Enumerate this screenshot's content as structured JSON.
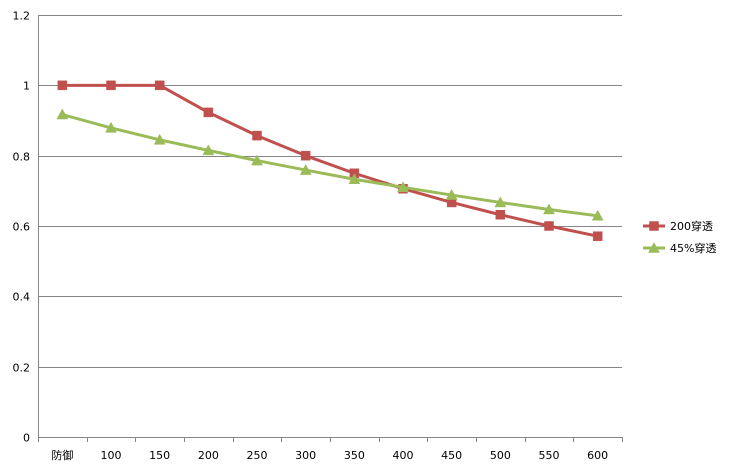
{
  "chart_data": {
    "type": "line",
    "categories": [
      "防御",
      "100",
      "150",
      "200",
      "250",
      "300",
      "350",
      "400",
      "450",
      "500",
      "550",
      "600"
    ],
    "ylim": [
      0,
      1.2
    ],
    "yticks": [
      "0",
      "0.2",
      "0.4",
      "0.6",
      "0.8",
      "1",
      "1.2"
    ],
    "grid": true,
    "legend": "right",
    "series": [
      {
        "name": "200穿透",
        "color": "#c0504d",
        "marker": "square",
        "values": [
          1,
          1,
          1,
          0.923,
          0.857,
          0.8,
          0.75,
          0.706,
          0.667,
          0.632,
          0.6,
          0.571
        ]
      },
      {
        "name": "45%穿透",
        "color": "#9bbb59",
        "marker": "triangle",
        "values": [
          0.917,
          0.879,
          0.845,
          0.815,
          0.786,
          0.759,
          0.733,
          0.71,
          0.688,
          0.667,
          0.647,
          0.629
        ]
      }
    ]
  }
}
